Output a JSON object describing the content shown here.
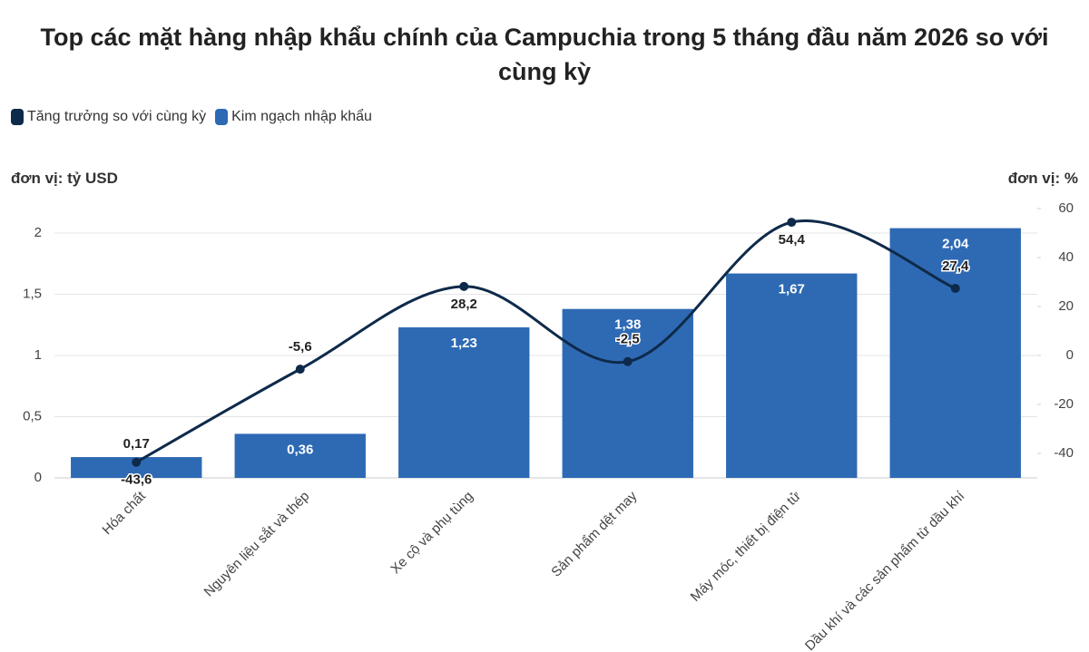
{
  "chart_data": {
    "type": "bar",
    "title": "Top các mặt hàng nhập khẩu chính của Campuchia trong 5 tháng đầu năm 2026 so với cùng kỳ",
    "y_label": "đơn vị: tỷ USD",
    "y2_label": "đơn vị: %",
    "categories": [
      "Hóa chất",
      "Nguyên liệu sắt và thép",
      "Xe cộ và phụ tùng",
      "Sản phẩm dệt may",
      "Máy móc, thiết bị điện tử",
      "Dầu khí và các sản phẩm từ dầu khí"
    ],
    "series": [
      {
        "name": "Tăng trưởng so với cùng kỳ",
        "type": "line",
        "axis": "y2",
        "color": "#0e2a4a",
        "values": [
          -43.6,
          -5.6,
          28.2,
          -2.5,
          54.4,
          27.4
        ],
        "value_labels": [
          "-43,6",
          "-5,6",
          "28,2",
          "-2,5",
          "54,4",
          "27,4"
        ]
      },
      {
        "name": "Kim ngạch nhập khẩu",
        "type": "bar",
        "color": "#2e6ab4",
        "values": [
          0.17,
          0.36,
          1.23,
          1.38,
          1.67,
          2.04
        ],
        "value_labels": [
          "0,17",
          "0,36",
          "1,23",
          "1,38",
          "1,67",
          "2,04"
        ]
      }
    ],
    "ylim": [
      0,
      2.2
    ],
    "yticks": [
      0,
      {
        "value": 0.5,
        "label": "0,5"
      },
      1,
      {
        "value": 1.5,
        "label": "1,5"
      },
      2
    ],
    "y2lim": [
      -50,
      60
    ],
    "y2ticks": [
      -40,
      -20,
      0,
      20,
      40,
      60
    ],
    "grid": true
  }
}
